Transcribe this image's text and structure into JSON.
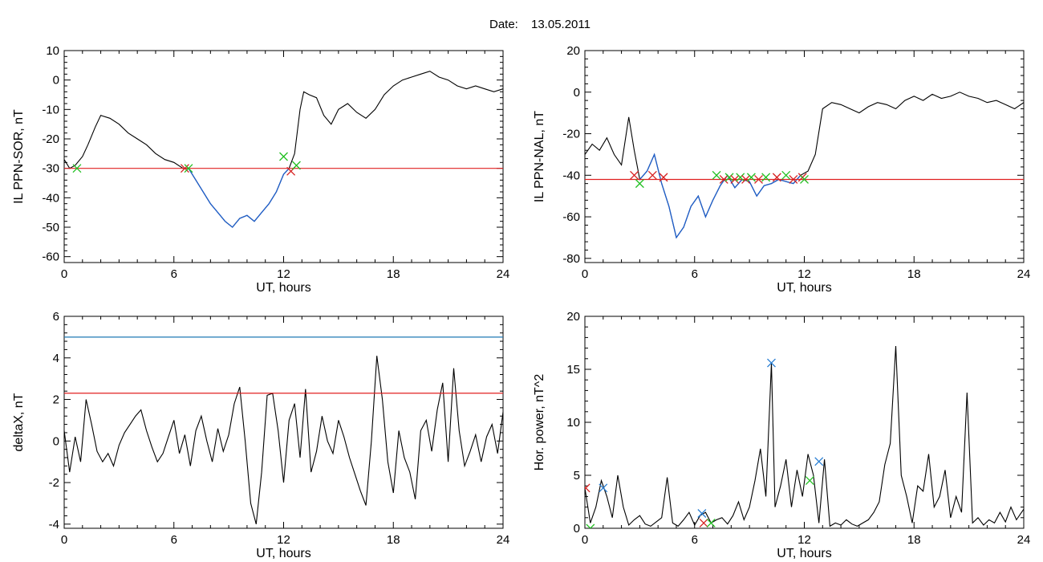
{
  "header": {
    "date_label": "Date:",
    "date_value": "13.05.2011"
  },
  "colors": {
    "trace": "#000000",
    "highlight": "#1e5fcc",
    "threshold": "#e02020",
    "upper_line": "#1f78b4",
    "marker_red": "#d62020",
    "marker_green": "#22c022",
    "marker_blue": "#2a7fd4"
  },
  "chart_data": [
    {
      "type": "line",
      "ylabel": "IL PPN-SOR, nT",
      "xlabel": "UT, hours",
      "xlim": [
        0,
        24
      ],
      "ylim": [
        -62,
        10
      ],
      "xticks": [
        "0",
        "6",
        "12",
        "18",
        "24"
      ],
      "yticks": [
        "10",
        "0",
        "-10",
        "-20",
        "-30",
        "-40",
        "-50",
        "-60"
      ],
      "ytick_values": [
        10,
        0,
        -10,
        -20,
        -30,
        -40,
        -50,
        -60
      ],
      "threshold": -30,
      "series": [
        {
          "role": "trace",
          "x": [
            0,
            0.3,
            0.6,
            1.0,
            1.3,
            1.7,
            2.0,
            2.5,
            3.0,
            3.5,
            4.0,
            4.5,
            5.0,
            5.5,
            6.0,
            6.5,
            6.8,
            7.2,
            7.6,
            8.0,
            8.4,
            8.8,
            9.2,
            9.6,
            10.0,
            10.4,
            10.8,
            11.2,
            11.6,
            12.0,
            12.3,
            12.6,
            12.9,
            13.1,
            13.4,
            13.8,
            14.2,
            14.6,
            15.0,
            15.5,
            16.0,
            16.5,
            17.0,
            17.5,
            18.0,
            18.5,
            19.0,
            19.5,
            20.0,
            20.5,
            21.0,
            21.5,
            22.0,
            22.5,
            23.0,
            23.5,
            24.0
          ],
          "y": [
            -27,
            -30,
            -29,
            -26,
            -22,
            -16,
            -12,
            -13,
            -15,
            -18,
            -20,
            -22,
            -25,
            -27,
            -28,
            -30,
            -30,
            -34,
            -38,
            -42,
            -45,
            -48,
            -50,
            -47,
            -46,
            -48,
            -45,
            -42,
            -38,
            -32,
            -30,
            -25,
            -10,
            -4,
            -5,
            -6,
            -12,
            -15,
            -10,
            -8,
            -11,
            -13,
            -10,
            -5,
            -2,
            0,
            1,
            2,
            3,
            1,
            0,
            -2,
            -3,
            -2,
            -3,
            -4,
            -3
          ]
        },
        {
          "role": "highlight",
          "x_range": [
            6.7,
            12.4
          ]
        }
      ],
      "markers": [
        {
          "x": 0.7,
          "y": -30,
          "color": "green"
        },
        {
          "x": 6.6,
          "y": -30,
          "color": "red"
        },
        {
          "x": 6.8,
          "y": -30,
          "color": "green"
        },
        {
          "x": 12.0,
          "y": -26,
          "color": "green"
        },
        {
          "x": 12.4,
          "y": -31,
          "color": "red"
        },
        {
          "x": 12.7,
          "y": -29,
          "color": "green"
        }
      ]
    },
    {
      "type": "line",
      "ylabel": "IL PPN-NAL, nT",
      "xlabel": "UT, hours",
      "xlim": [
        0,
        24
      ],
      "ylim": [
        -82,
        20
      ],
      "xticks": [
        "0",
        "6",
        "12",
        "18",
        "24"
      ],
      "yticks": [
        "20",
        "0",
        "-20",
        "-40",
        "-60",
        "-80"
      ],
      "ytick_values": [
        20,
        0,
        -20,
        -40,
        -60,
        -80
      ],
      "threshold": -42,
      "series": [
        {
          "role": "trace",
          "x": [
            0,
            0.4,
            0.8,
            1.2,
            1.6,
            2.0,
            2.4,
            2.7,
            3.0,
            3.4,
            3.8,
            4.2,
            4.6,
            5.0,
            5.4,
            5.8,
            6.2,
            6.6,
            7.0,
            7.4,
            7.8,
            8.2,
            8.6,
            9.0,
            9.4,
            9.8,
            10.2,
            10.6,
            11.0,
            11.4,
            11.8,
            12.2,
            12.6,
            13.0,
            13.5,
            14.0,
            14.5,
            15.0,
            15.5,
            16.0,
            16.5,
            17.0,
            17.5,
            18.0,
            18.5,
            19.0,
            19.5,
            20.0,
            20.5,
            21.0,
            21.5,
            22.0,
            22.5,
            23.0,
            23.5,
            24.0
          ],
          "y": [
            -30,
            -25,
            -28,
            -22,
            -30,
            -35,
            -12,
            -28,
            -42,
            -38,
            -30,
            -44,
            -55,
            -70,
            -65,
            -55,
            -50,
            -60,
            -52,
            -45,
            -40,
            -46,
            -42,
            -43,
            -50,
            -45,
            -44,
            -42,
            -43,
            -44,
            -40,
            -38,
            -30,
            -8,
            -5,
            -6,
            -8,
            -10,
            -7,
            -5,
            -6,
            -8,
            -4,
            -2,
            -4,
            -1,
            -3,
            -2,
            0,
            -2,
            -3,
            -5,
            -4,
            -6,
            -8,
            -5
          ]
        },
        {
          "role": "highlight",
          "x_range": [
            2.8,
            12.1
          ]
        }
      ],
      "markers": [
        {
          "x": 2.7,
          "y": -40,
          "color": "red"
        },
        {
          "x": 3.0,
          "y": -44,
          "color": "green"
        },
        {
          "x": 3.7,
          "y": -40,
          "color": "red"
        },
        {
          "x": 4.3,
          "y": -41,
          "color": "red"
        },
        {
          "x": 7.2,
          "y": -40,
          "color": "green"
        },
        {
          "x": 7.6,
          "y": -42,
          "color": "red"
        },
        {
          "x": 7.9,
          "y": -41,
          "color": "green"
        },
        {
          "x": 8.2,
          "y": -42,
          "color": "red"
        },
        {
          "x": 8.5,
          "y": -41,
          "color": "green"
        },
        {
          "x": 8.8,
          "y": -42,
          "color": "red"
        },
        {
          "x": 9.1,
          "y": -41,
          "color": "green"
        },
        {
          "x": 9.5,
          "y": -42,
          "color": "red"
        },
        {
          "x": 9.9,
          "y": -41,
          "color": "green"
        },
        {
          "x": 10.5,
          "y": -41,
          "color": "red"
        },
        {
          "x": 11.0,
          "y": -40,
          "color": "green"
        },
        {
          "x": 11.4,
          "y": -42,
          "color": "red"
        },
        {
          "x": 11.9,
          "y": -41,
          "color": "red"
        },
        {
          "x": 12.0,
          "y": -42,
          "color": "green"
        }
      ]
    },
    {
      "type": "line",
      "ylabel": "deltaX, nT",
      "xlabel": "UT, hours",
      "xlim": [
        0,
        24
      ],
      "ylim": [
        -4.2,
        6
      ],
      "xticks": [
        "0",
        "6",
        "12",
        "18",
        "24"
      ],
      "yticks": [
        "6",
        "4",
        "2",
        "0",
        "-2",
        "-4"
      ],
      "ytick_values": [
        6,
        4,
        2,
        0,
        -2,
        -4
      ],
      "threshold": 2.3,
      "upper_line": 5.0,
      "series": [
        {
          "role": "trace",
          "x": [
            0,
            0.3,
            0.6,
            0.9,
            1.2,
            1.5,
            1.8,
            2.1,
            2.4,
            2.7,
            3.0,
            3.3,
            3.6,
            3.9,
            4.2,
            4.5,
            4.8,
            5.1,
            5.4,
            5.7,
            6.0,
            6.3,
            6.6,
            6.9,
            7.2,
            7.5,
            7.8,
            8.1,
            8.4,
            8.7,
            9.0,
            9.3,
            9.6,
            9.9,
            10.2,
            10.5,
            10.8,
            11.1,
            11.4,
            11.7,
            12.0,
            12.3,
            12.6,
            12.9,
            13.2,
            13.5,
            13.8,
            14.1,
            14.4,
            14.7,
            15.0,
            15.3,
            15.6,
            15.9,
            16.2,
            16.5,
            16.8,
            17.1,
            17.4,
            17.7,
            18.0,
            18.3,
            18.6,
            18.9,
            19.2,
            19.5,
            19.8,
            20.1,
            20.4,
            20.7,
            21.0,
            21.3,
            21.6,
            21.9,
            22.2,
            22.5,
            22.8,
            23.1,
            23.4,
            23.7,
            24.0
          ],
          "y": [
            0.5,
            -1.5,
            0.2,
            -1.0,
            2.0,
            0.8,
            -0.5,
            -1.0,
            -0.6,
            -1.2,
            -0.2,
            0.4,
            0.8,
            1.2,
            1.5,
            0.5,
            -0.3,
            -1.0,
            -0.6,
            0.2,
            1.0,
            -0.6,
            0.3,
            -1.2,
            0.5,
            1.2,
            0.0,
            -1.0,
            0.6,
            -0.5,
            0.3,
            1.8,
            2.6,
            0.0,
            -3.0,
            -4.0,
            -1.5,
            2.2,
            2.3,
            0.5,
            -2.0,
            1.0,
            1.8,
            -0.8,
            2.5,
            -1.5,
            -0.5,
            1.2,
            0.0,
            -0.6,
            1.0,
            0.2,
            -0.8,
            -1.6,
            -2.4,
            -3.1,
            0.0,
            4.1,
            2.0,
            -1.0,
            -2.5,
            0.5,
            -0.8,
            -1.5,
            -2.8,
            0.5,
            1.0,
            -0.5,
            1.5,
            2.8,
            -1.0,
            3.5,
            0.5,
            -1.2,
            -0.5,
            0.3,
            -1.0,
            0.2,
            0.8,
            -0.6,
            1.4
          ]
        }
      ]
    },
    {
      "type": "line",
      "ylabel": "Hor. power, nT^2",
      "xlabel": "UT, hours",
      "xlim": [
        0,
        24
      ],
      "ylim": [
        0,
        20
      ],
      "xticks": [
        "0",
        "6",
        "12",
        "18",
        "24"
      ],
      "yticks": [
        "20",
        "15",
        "10",
        "5",
        "0"
      ],
      "ytick_values": [
        20,
        15,
        10,
        5,
        0
      ],
      "series": [
        {
          "role": "trace",
          "x": [
            0,
            0.3,
            0.6,
            0.9,
            1.2,
            1.5,
            1.8,
            2.1,
            2.4,
            2.7,
            3.0,
            3.3,
            3.6,
            3.9,
            4.2,
            4.5,
            4.8,
            5.1,
            5.4,
            5.7,
            6.0,
            6.3,
            6.6,
            6.9,
            7.2,
            7.5,
            7.8,
            8.1,
            8.4,
            8.7,
            9.0,
            9.3,
            9.6,
            9.9,
            10.2,
            10.4,
            10.7,
            11.0,
            11.3,
            11.6,
            11.9,
            12.2,
            12.5,
            12.8,
            13.1,
            13.4,
            13.7,
            14.0,
            14.3,
            14.6,
            14.9,
            15.2,
            15.5,
            15.8,
            16.1,
            16.4,
            16.7,
            17.0,
            17.3,
            17.6,
            17.9,
            18.2,
            18.5,
            18.8,
            19.1,
            19.4,
            19.7,
            20.0,
            20.3,
            20.6,
            20.9,
            21.2,
            21.5,
            21.8,
            22.1,
            22.4,
            22.7,
            23.0,
            23.3,
            23.6,
            24.0
          ],
          "y": [
            3.8,
            0.5,
            2.0,
            4.5,
            3.0,
            1.0,
            5.0,
            2.0,
            0.3,
            0.8,
            1.2,
            0.4,
            0.2,
            0.6,
            1.0,
            4.8,
            0.5,
            0.2,
            0.8,
            1.5,
            0.3,
            1.2,
            1.5,
            0.5,
            0.8,
            1.0,
            0.4,
            1.2,
            2.5,
            0.8,
            2.0,
            4.5,
            7.5,
            3.0,
            15.6,
            2.0,
            4.0,
            6.5,
            2.0,
            5.5,
            3.0,
            7.0,
            5.0,
            0.5,
            6.5,
            0.2,
            0.5,
            0.3,
            0.8,
            0.4,
            0.2,
            0.5,
            0.8,
            1.5,
            2.5,
            6.0,
            8.0,
            17.2,
            5.0,
            3.0,
            0.5,
            4.0,
            3.5,
            7.0,
            2.0,
            3.0,
            5.5,
            1.0,
            3.0,
            1.5,
            12.8,
            0.5,
            1.0,
            0.3,
            0.8,
            0.5,
            1.5,
            0.6,
            2.0,
            0.8,
            1.8
          ]
        }
      ],
      "markers": [
        {
          "x": 0.05,
          "y": 3.8,
          "color": "red"
        },
        {
          "x": 0.3,
          "y": 0.0,
          "color": "green"
        },
        {
          "x": 1.0,
          "y": 3.8,
          "color": "blue"
        },
        {
          "x": 6.4,
          "y": 1.4,
          "color": "blue"
        },
        {
          "x": 6.5,
          "y": 0.5,
          "color": "red"
        },
        {
          "x": 6.9,
          "y": 0.5,
          "color": "green"
        },
        {
          "x": 10.2,
          "y": 15.6,
          "color": "blue"
        },
        {
          "x": 12.3,
          "y": 4.5,
          "color": "green"
        },
        {
          "x": 12.8,
          "y": 6.3,
          "color": "blue"
        }
      ]
    }
  ]
}
